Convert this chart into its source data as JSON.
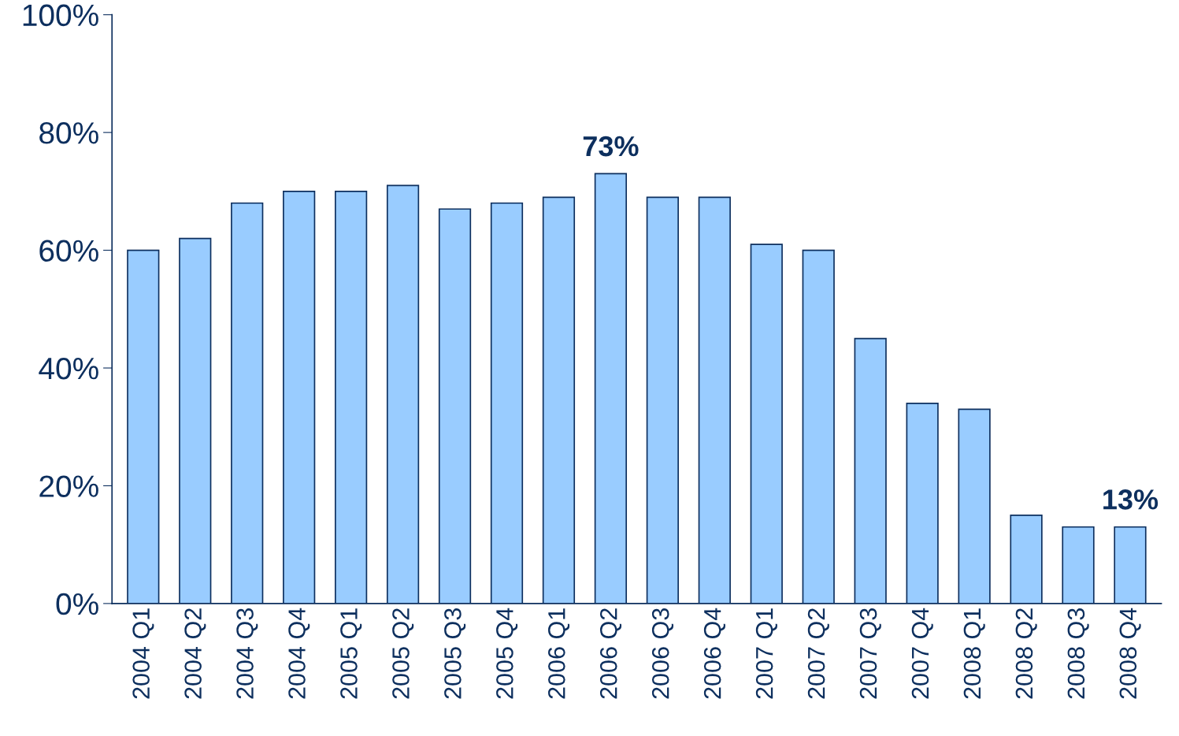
{
  "chart_data": {
    "type": "bar",
    "categories": [
      "2004 Q1",
      "2004 Q2",
      "2004 Q3",
      "2004 Q4",
      "2005 Q1",
      "2005 Q2",
      "2005 Q3",
      "2005 Q4",
      "2006 Q1",
      "2006 Q2",
      "2006 Q3",
      "2006 Q4",
      "2007 Q1",
      "2007 Q2",
      "2007 Q3",
      "2007 Q4",
      "2008 Q1",
      "2008 Q2",
      "2008 Q3",
      "2008 Q4"
    ],
    "values": [
      60,
      62,
      68,
      70,
      70,
      71,
      67,
      68,
      69,
      73,
      69,
      69,
      61,
      60,
      45,
      34,
      33,
      15,
      13,
      13
    ],
    "value_labels": [
      null,
      null,
      null,
      null,
      null,
      null,
      null,
      null,
      null,
      "73%",
      null,
      null,
      null,
      null,
      null,
      null,
      null,
      null,
      null,
      "13%"
    ],
    "color": "#99ccff",
    "ylim": [
      0,
      100
    ],
    "yticks": [
      {
        "value": 0,
        "label": "0%"
      },
      {
        "value": 20,
        "label": "20%"
      },
      {
        "value": 40,
        "label": "40%"
      },
      {
        "value": 60,
        "label": "60%"
      },
      {
        "value": 80,
        "label": "80%"
      },
      {
        "value": 100,
        "label": "100%"
      }
    ],
    "grid": false
  }
}
